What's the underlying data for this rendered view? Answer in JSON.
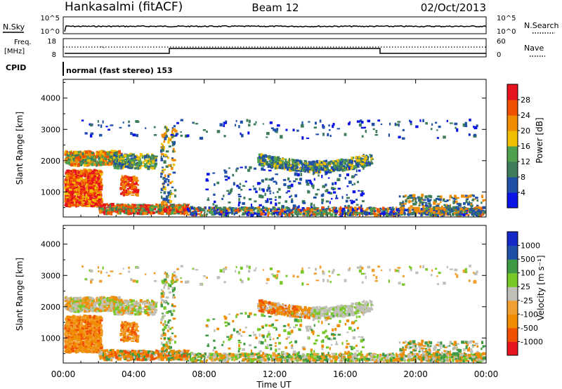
{
  "header": {
    "station": "Hankasalmi (fitACF)",
    "beam": "Beam 12",
    "date": "02/Oct/2013"
  },
  "noise_panel": {
    "left_label": "N.Sky",
    "left_ticks": [
      "10^5",
      "10^0"
    ],
    "right_ticks": [
      "10^5",
      "10^0"
    ],
    "right_label": "N.Search"
  },
  "freq_panel": {
    "label_line1": "Freq.",
    "label_line2": "[MHz]",
    "left_ticks": [
      "18",
      "8"
    ],
    "right_ticks": [
      "60",
      "0"
    ],
    "right_label": "Nave"
  },
  "cpid": {
    "label": "CPID",
    "text": "normal (fast stereo) 153"
  },
  "colors": {
    "power_scale": [
      "#0a14e6",
      "#1f4fa6",
      "#3f7d5a",
      "#4fa04f",
      "#f0c000",
      "#f08c00",
      "#f05000",
      "#e6141e"
    ],
    "velocity_scale": [
      "#e6141e",
      "#f05000",
      "#f08c00",
      "#f0a030",
      "#c0c0b8",
      "#78c828",
      "#3f9a46",
      "#1f4fa6",
      "#1428c8"
    ]
  },
  "chart_data": [
    {
      "type": "heatmap",
      "name": "power",
      "ylabel": "Slant Range [km]",
      "yticks": [
        "1000",
        "2000",
        "3000",
        "4000"
      ],
      "ylim": [
        200,
        4600
      ],
      "xlim": [
        "00:00",
        "24:00"
      ],
      "colorbar_label": "Power [dB]",
      "colorbar_ticks": [
        "4",
        "8",
        "12",
        "16",
        "20",
        "24",
        "28"
      ],
      "colorbar_range": [
        0,
        32
      ]
    },
    {
      "type": "heatmap",
      "name": "velocity",
      "ylabel": "Slant Range [km]",
      "yticks": [
        "1000",
        "2000",
        "3000",
        "4000"
      ],
      "ylim": [
        200,
        4600
      ],
      "xlabel": "Time UT",
      "xticks": [
        "00:00",
        "04:00",
        "08:00",
        "12:00",
        "16:00",
        "20:00",
        "00:00"
      ],
      "xlim": [
        "00:00",
        "24:00"
      ],
      "colorbar_label": "Velocity [m s⁻¹]",
      "colorbar_ticks": [
        "1000",
        "500",
        "100",
        "25",
        "-25",
        "-100",
        "-500",
        "-1000"
      ]
    }
  ]
}
